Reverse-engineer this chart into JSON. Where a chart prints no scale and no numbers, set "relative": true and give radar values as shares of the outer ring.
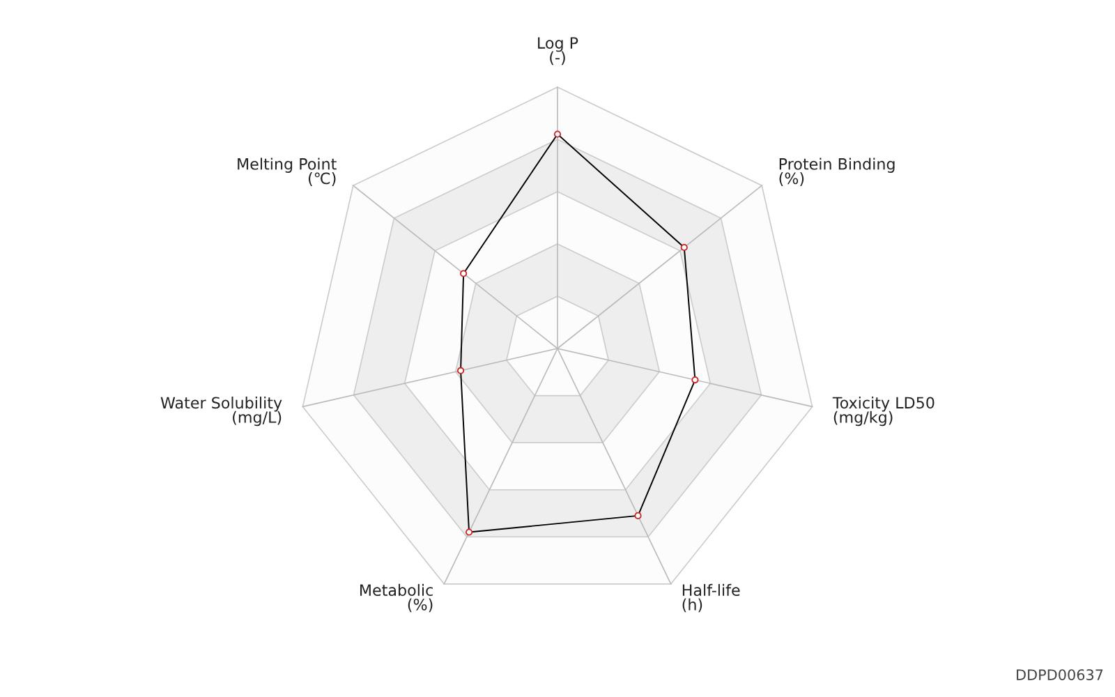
{
  "chart_data": {
    "type": "radar",
    "relative": true,
    "categories": [
      "Log P\n(-)",
      "Protein Binding\n(%)",
      "Toxicity LD50\n(mg/kg)",
      "Half-life\n(h)",
      "Metabolic\n(%)",
      "Water Solubility\n(mg/L)",
      "Melting Point\n(℃)"
    ],
    "series": [
      {
        "color": "#000000",
        "values": [
          0.82,
          0.62,
          0.54,
          0.71,
          0.78,
          0.38,
          0.46
        ]
      }
    ],
    "marker": "circle",
    "grid": true,
    "annotations": [
      "DDPD00637"
    ]
  }
}
